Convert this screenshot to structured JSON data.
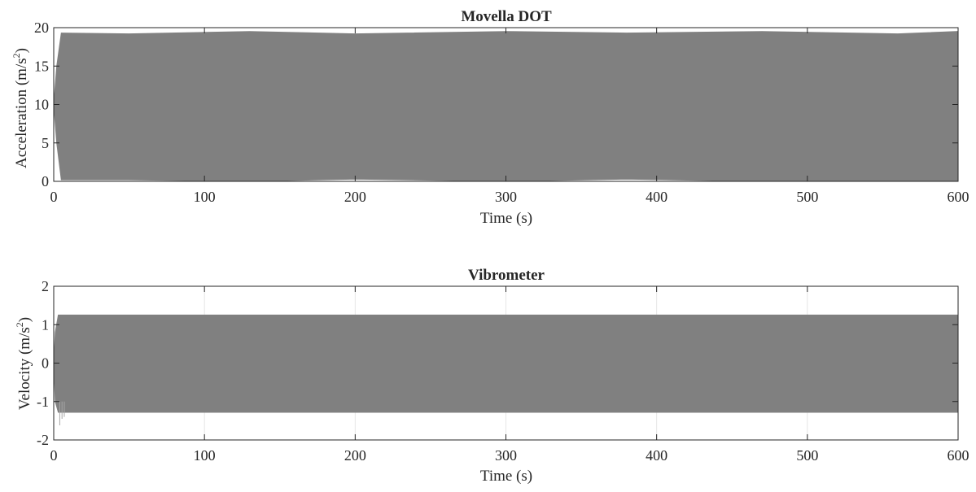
{
  "chart_data": [
    {
      "type": "line",
      "title": "Movella DOT",
      "xlabel": "Time (s)",
      "ylabel_main": "Acceleration (m/s",
      "ylabel_sup": "2",
      "ylabel_tail": ")",
      "xlim": [
        0,
        600
      ],
      "ylim": [
        0,
        20
      ],
      "xticks": [
        0,
        100,
        200,
        300,
        400,
        500,
        600
      ],
      "yticks": [
        0,
        5,
        10,
        15,
        20
      ],
      "grid": false,
      "series": [
        {
          "color": "#808080",
          "description": "dense oscillating signal band",
          "envelope_x": [
            0,
            2,
            5,
            50,
            130,
            200,
            300,
            380,
            470,
            560,
            600
          ],
          "envelope_upper": [
            10,
            15,
            19.3,
            19.2,
            19.5,
            19.2,
            19.5,
            19.3,
            19.5,
            19.2,
            19.5
          ],
          "envelope_lower": [
            10,
            5,
            0.2,
            0.2,
            0.0,
            0.3,
            0.0,
            0.3,
            0.0,
            0.1,
            0.0
          ]
        }
      ]
    },
    {
      "type": "line",
      "title": "Vibrometer",
      "xlabel": "Time (s)",
      "ylabel_main": "Velocity (m/s",
      "ylabel_sup": "2",
      "ylabel_tail": ")",
      "xlim": [
        0,
        600
      ],
      "ylim": [
        -2,
        2
      ],
      "xticks": [
        0,
        100,
        200,
        300,
        400,
        500,
        600
      ],
      "yticks": [
        -2,
        -1,
        0,
        1,
        2
      ],
      "grid": true,
      "series": [
        {
          "color": "#808080",
          "description": "dense oscillating signal band",
          "envelope_x": [
            0,
            1,
            3,
            600
          ],
          "envelope_upper": [
            0,
            0.8,
            1.25,
            1.25
          ],
          "envelope_lower": [
            0,
            -1.0,
            -1.28,
            -1.28
          ],
          "transient_x": [
            4,
            5.5,
            7
          ],
          "transient_y": [
            -1.62,
            -1.45,
            -1.4
          ]
        }
      ]
    }
  ]
}
